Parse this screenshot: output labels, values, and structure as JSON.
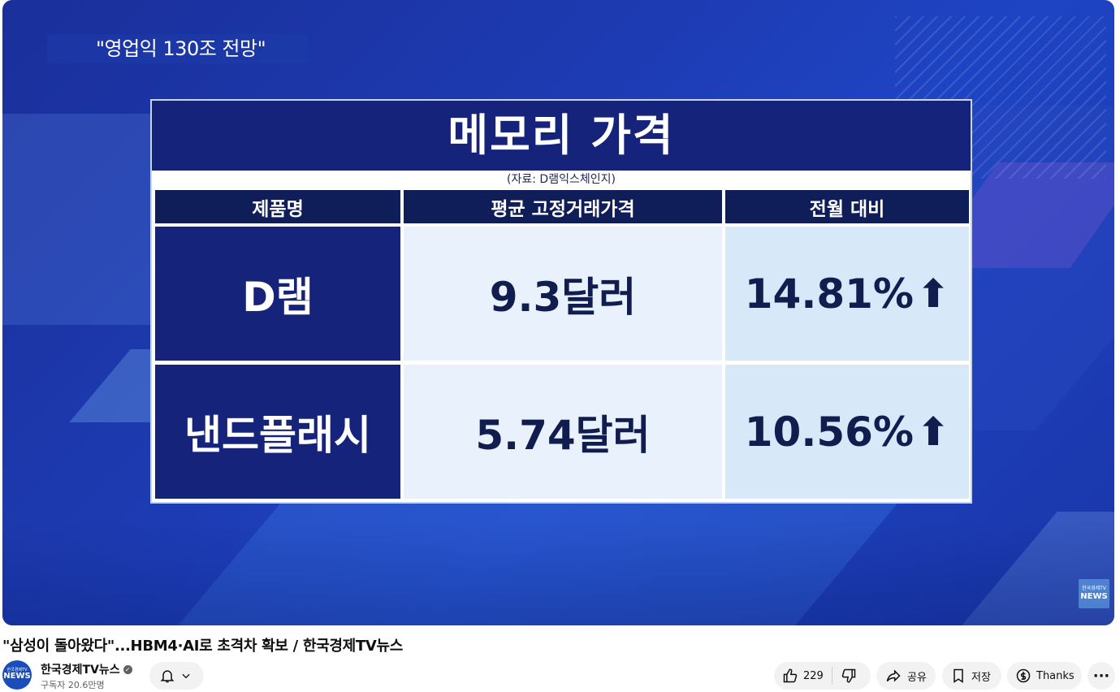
{
  "video": {
    "caption": "\"영업익 130조 전망\"",
    "table": {
      "title": "메모리 가격",
      "source": "(자료: D램익스체인지)",
      "headers": [
        "제품명",
        "평균 고정거래가격",
        "전월 대비"
      ],
      "rows": [
        {
          "name": "D램",
          "price": "9.3달러",
          "change": "14.81%",
          "arrow": "⬆"
        },
        {
          "name": "낸드플래시",
          "price": "5.74달러",
          "change": "10.56%",
          "arrow": "⬆"
        }
      ]
    },
    "watermark": {
      "top": "한국경제TV",
      "bottom": "NEWS"
    }
  },
  "video_title": "\"삼성이 돌아왔다\"...HBM4·AI로 초격차 확보 / 한국경제TV뉴스",
  "channel": {
    "avatar_top": "한국경제TV",
    "avatar_bottom": "NEWS",
    "name": "한국경제TV뉴스",
    "subscribers": "구독자 20.6만명"
  },
  "actions": {
    "likes": "229",
    "share": "공유",
    "save": "저장",
    "thanks": "Thanks",
    "more": "···"
  },
  "icons": [
    "bell-icon",
    "chevron-down-icon",
    "thumbs-up-icon",
    "thumbs-down-icon",
    "share-icon",
    "bookmark-icon",
    "thanks-icon",
    "more-icon",
    "verified-icon"
  ]
}
